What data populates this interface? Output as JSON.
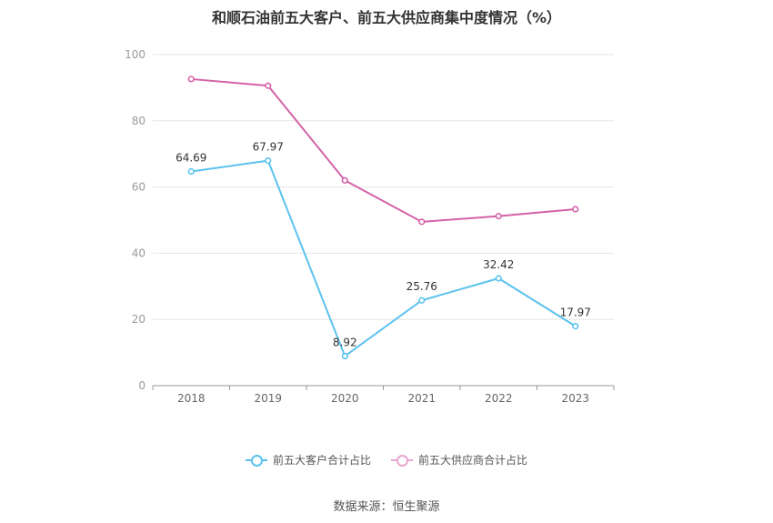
{
  "chart_data": {
    "type": "line",
    "title": "和顺石油前五大客户、前五大供应商集中度情况（%）",
    "categories": [
      "2018",
      "2019",
      "2020",
      "2021",
      "2022",
      "2023"
    ],
    "y_ticks": [
      "0",
      "20",
      "40",
      "60",
      "80",
      "100"
    ],
    "ylim": [
      0,
      100
    ],
    "grid": true,
    "legend_position": "bottom",
    "series": [
      {
        "name": "前五大客户合计占比",
        "color": "#5bc2ee",
        "values": [
          64.69,
          67.97,
          8.92,
          25.76,
          32.42,
          17.97
        ],
        "labels": [
          "64.69",
          "67.97",
          "8.92",
          "25.76",
          "32.42",
          "17.97"
        ]
      },
      {
        "name": "前五大供应商合计占比",
        "color": "#d462a8",
        "values": [
          92.6,
          90.6,
          62.0,
          49.5,
          51.2,
          53.3
        ],
        "labels": null
      }
    ],
    "source": "数据来源：恒生聚源"
  }
}
